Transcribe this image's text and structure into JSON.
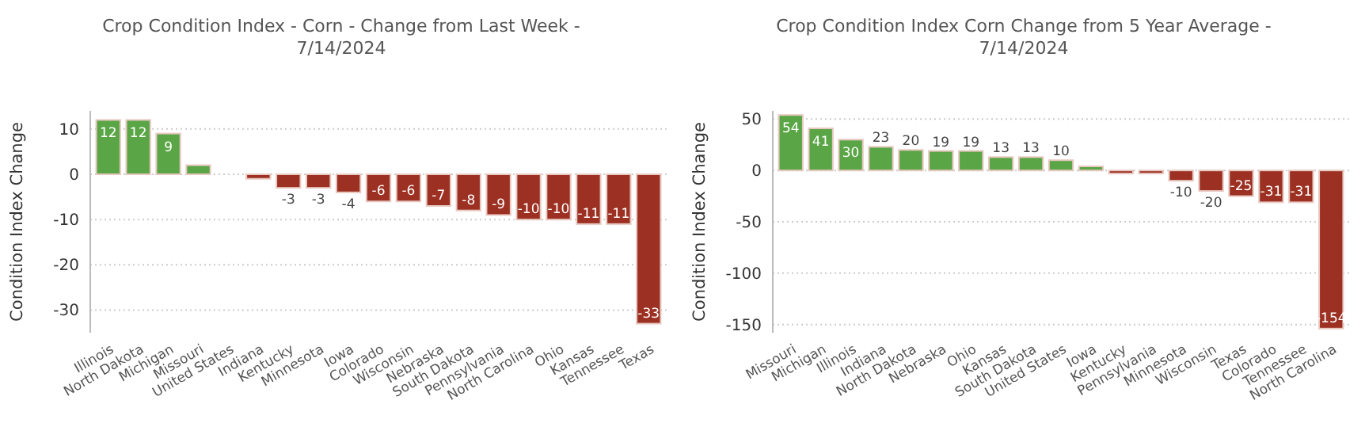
{
  "chart_data": [
    {
      "type": "bar",
      "title": "Crop Condition Index - Corn - Change from Last Week - 7/14/2024",
      "ylabel": "Condition Index Change",
      "categories": [
        "Illinois",
        "North Dakota",
        "Michigan",
        "Missouri",
        "United States",
        "Indiana",
        "Kentucky",
        "Minnesota",
        "Iowa",
        "Colorado",
        "Wisconsin",
        "Nebraska",
        "South Dakota",
        "Pennsylvania",
        "North Carolina",
        "Ohio",
        "Kansas",
        "Tennessee",
        "Texas"
      ],
      "values": [
        12,
        12,
        9,
        2,
        0,
        -1,
        -3,
        -3,
        -4,
        -6,
        -6,
        -7,
        -8,
        -9,
        -10,
        -10,
        -11,
        -11,
        -33
      ],
      "value_labels": [
        "12",
        "12",
        "9",
        null,
        null,
        null,
        "-3",
        "-3",
        "-4",
        "-6",
        "-6",
        "-7",
        "-8",
        "-9",
        "-10",
        "-10",
        "-11",
        "-11",
        "-33"
      ],
      "colors": [
        "#5aa646",
        "#5aa646",
        "#5aa646",
        "#5aa646",
        "#5aa646",
        "#9c3022",
        "#9c3022",
        "#9c3022",
        "#9c3022",
        "#9c3022",
        "#9c3022",
        "#9c3022",
        "#9c3022",
        "#9c3022",
        "#9c3022",
        "#9c3022",
        "#9c3022",
        "#9c3022",
        "#9c3022"
      ],
      "ylim": [
        -35,
        14
      ],
      "yticks": [
        -30,
        -20,
        -10,
        0,
        10
      ],
      "grid": "y"
    },
    {
      "type": "bar",
      "title": "Crop Condition Index Corn Change from 5 Year Average - 7/14/2024",
      "ylabel": "Condition Index Change",
      "categories": [
        "Missouri",
        "Michigan",
        "Illinois",
        "Indiana",
        "North Dakota",
        "Nebraska",
        "Ohio",
        "Kansas",
        "South Dakota",
        "United States",
        "Iowa",
        "Kentucky",
        "Pennsylvania",
        "Minnesota",
        "Wisconsin",
        "Texas",
        "Colorado",
        "Tennessee",
        "North Carolina"
      ],
      "values": [
        54,
        41,
        30,
        23,
        20,
        19,
        19,
        13,
        13,
        10,
        4,
        -3,
        -3,
        -10,
        -20,
        -25,
        -31,
        -31,
        -154
      ],
      "value_labels": [
        "54",
        "41",
        "30",
        "23",
        "20",
        "19",
        "19",
        "13",
        "13",
        "10",
        null,
        null,
        null,
        "-10",
        "-20",
        "-25",
        "-31",
        "-31",
        "-154"
      ],
      "colors": [
        "#5aa646",
        "#5aa646",
        "#5aa646",
        "#5aa646",
        "#5aa646",
        "#5aa646",
        "#5aa646",
        "#5aa646",
        "#5aa646",
        "#5aa646",
        "#5aa646",
        "#9c3022",
        "#9c3022",
        "#9c3022",
        "#9c3022",
        "#9c3022",
        "#9c3022",
        "#9c3022",
        "#9c3022"
      ],
      "ylim": [
        -158,
        58
      ],
      "yticks": [
        -150,
        -100,
        -50,
        0,
        50
      ],
      "grid": "y"
    }
  ]
}
